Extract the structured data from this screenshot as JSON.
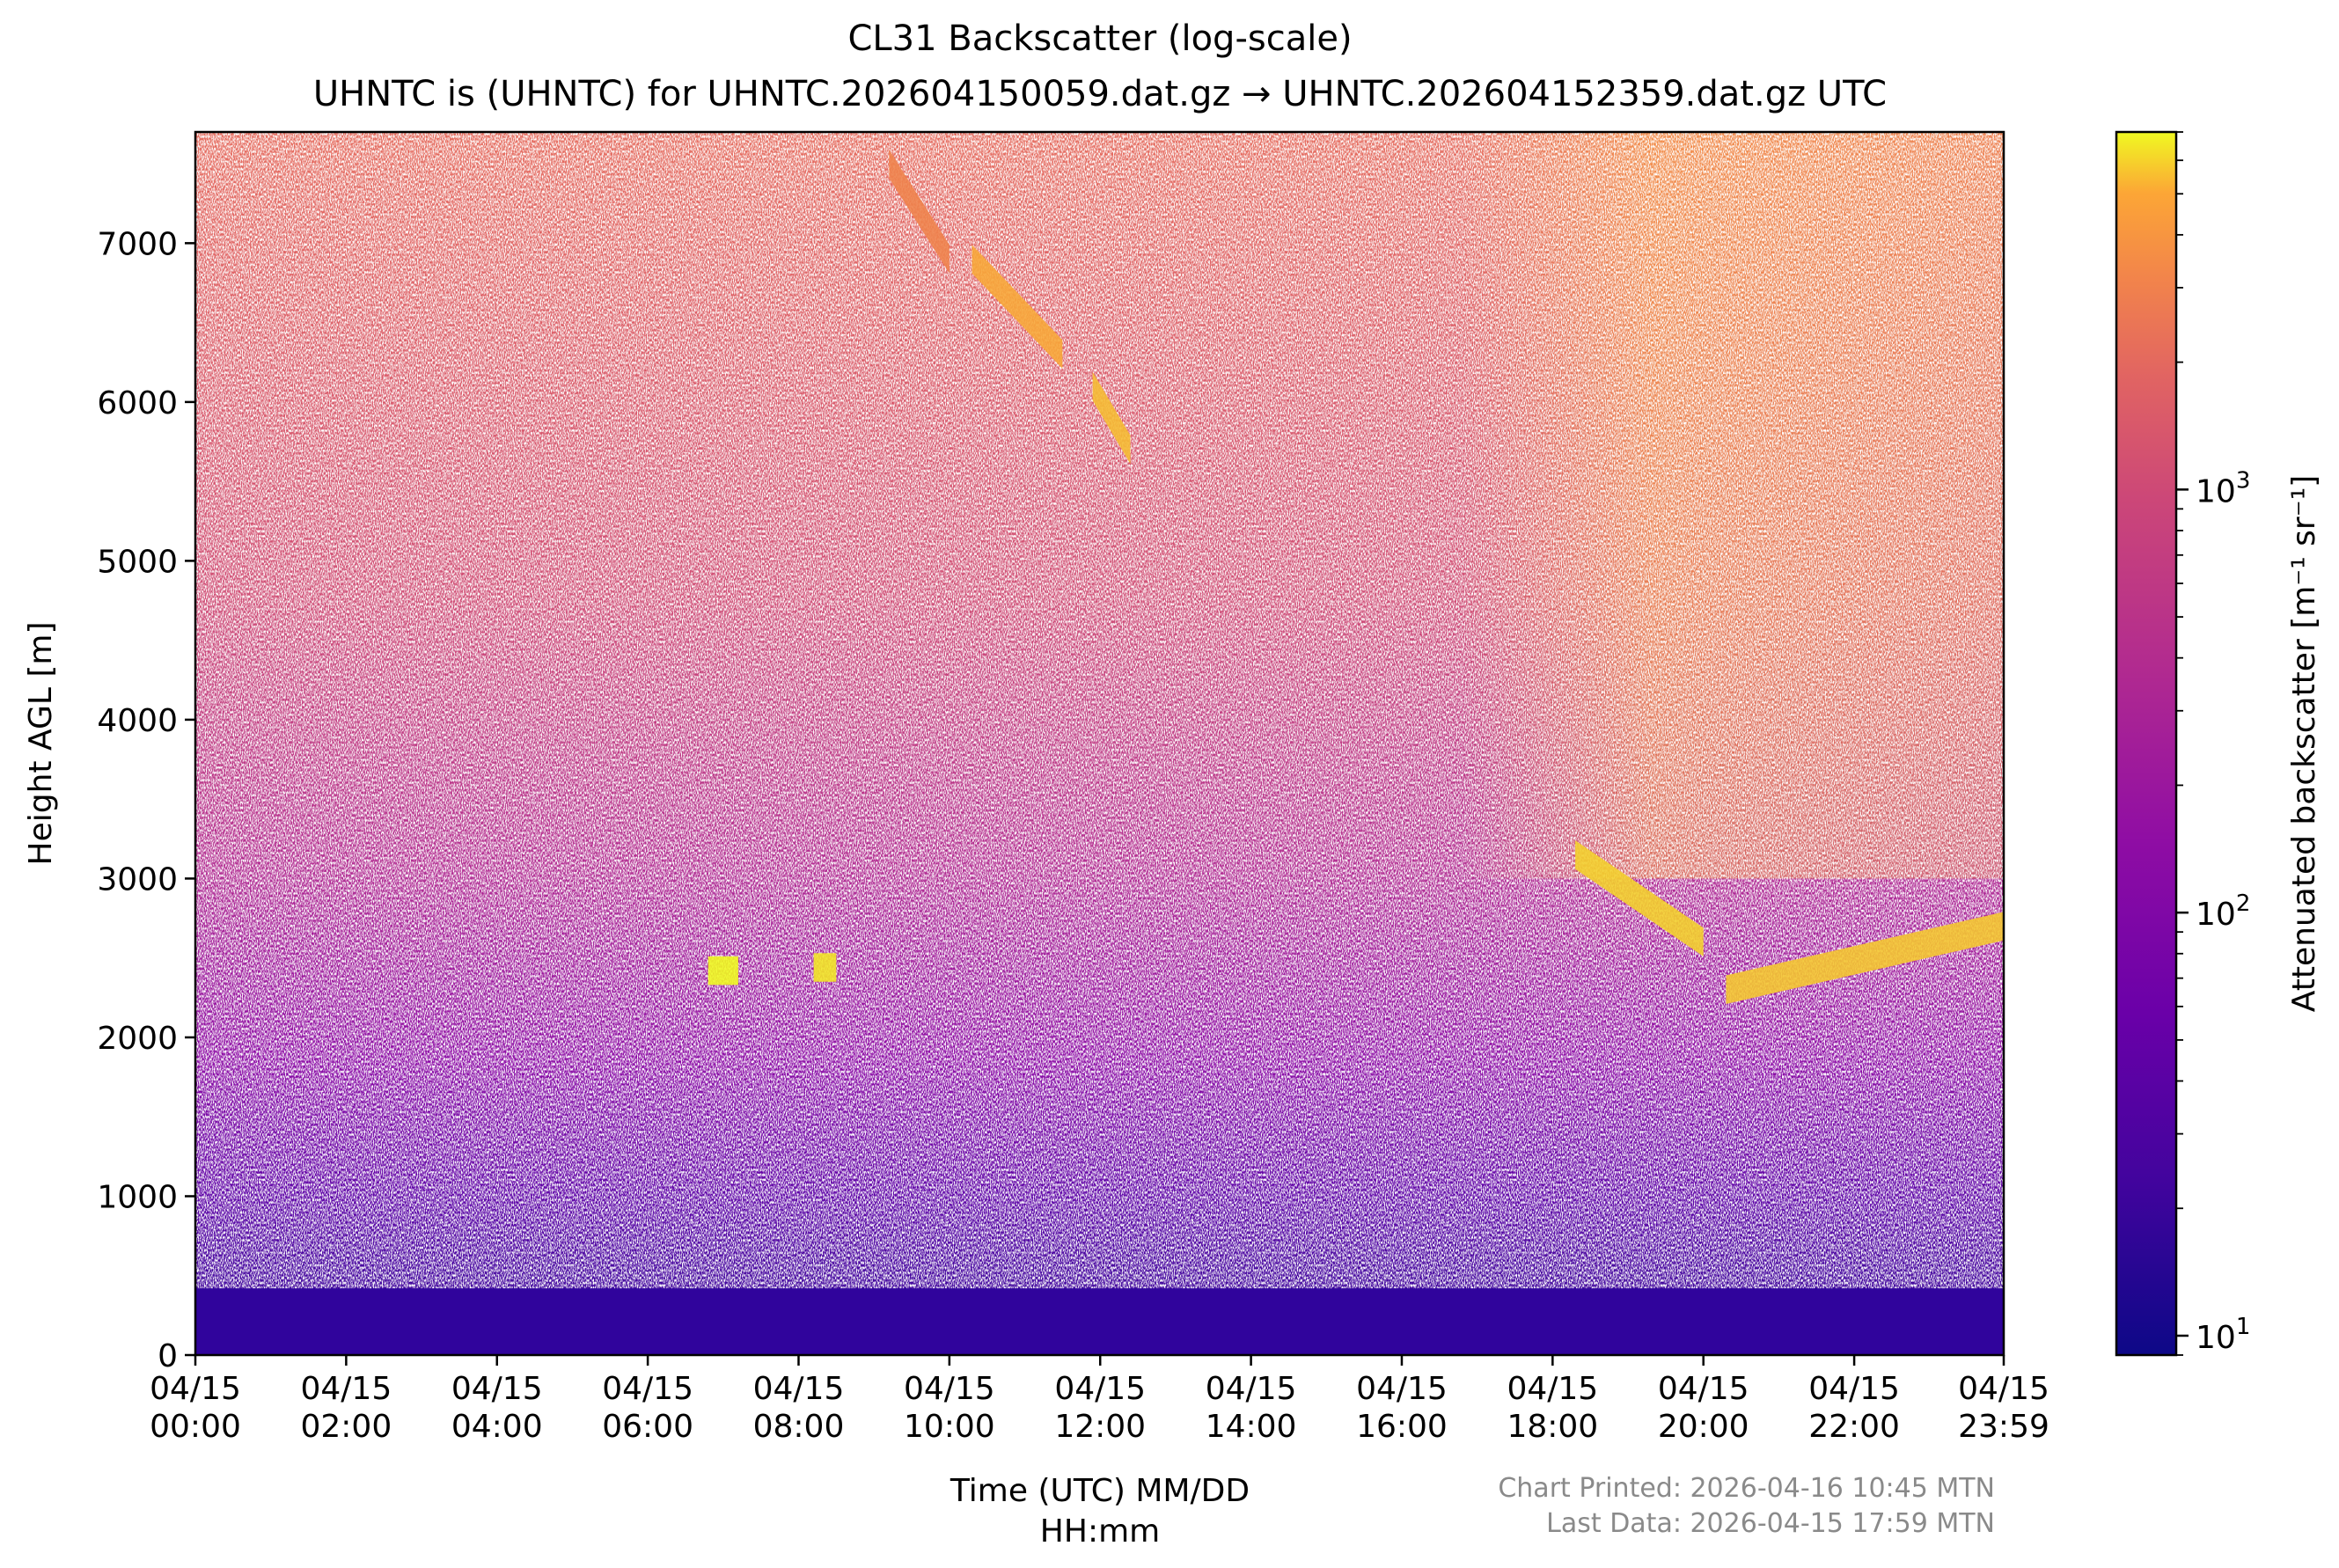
{
  "chart_data": {
    "type": "heatmap",
    "title": "CL31 Backscatter (log-scale)",
    "subtitle": "UHNTC is (UHNTC) for UHNTC.202604150059.dat.gz → UHNTC.202604152359.dat.gz UTC",
    "xlabel_line1": "Time (UTC) MM/DD",
    "xlabel_line2": "HH:mm",
    "ylabel": "Height AGL [m]",
    "colorbar_label": "Attenuated backscatter [m⁻¹ sr⁻¹]",
    "colormap": "plasma",
    "colorbar_scale": "log",
    "colorbar_range": [
      9,
      7000
    ],
    "colorbar_ticks": [
      {
        "value": 10,
        "base": "10",
        "exp": "1"
      },
      {
        "value": 100,
        "base": "10",
        "exp": "2"
      },
      {
        "value": 1000,
        "base": "10",
        "exp": "3"
      }
    ],
    "xlim_hours": [
      0,
      23.983
    ],
    "ylim": [
      0,
      7700
    ],
    "x_ticks": [
      {
        "hours": 0,
        "date": "04/15",
        "time": "00:00"
      },
      {
        "hours": 2,
        "date": "04/15",
        "time": "02:00"
      },
      {
        "hours": 4,
        "date": "04/15",
        "time": "04:00"
      },
      {
        "hours": 6,
        "date": "04/15",
        "time": "06:00"
      },
      {
        "hours": 8,
        "date": "04/15",
        "time": "08:00"
      },
      {
        "hours": 10,
        "date": "04/15",
        "time": "10:00"
      },
      {
        "hours": 12,
        "date": "04/15",
        "time": "12:00"
      },
      {
        "hours": 14,
        "date": "04/15",
        "time": "14:00"
      },
      {
        "hours": 16,
        "date": "04/15",
        "time": "16:00"
      },
      {
        "hours": 18,
        "date": "04/15",
        "time": "18:00"
      },
      {
        "hours": 20,
        "date": "04/15",
        "time": "20:00"
      },
      {
        "hours": 22,
        "date": "04/15",
        "time": "22:00"
      },
      {
        "hours": 23.983,
        "date": "04/15",
        "time": "23:59"
      }
    ],
    "y_ticks": [
      {
        "value": 0,
        "label": "0"
      },
      {
        "value": 1000,
        "label": "1000"
      },
      {
        "value": 2000,
        "label": "2000"
      },
      {
        "value": 3000,
        "label": "3000"
      },
      {
        "value": 4000,
        "label": "4000"
      },
      {
        "value": 5000,
        "label": "5000"
      },
      {
        "value": 6000,
        "label": "6000"
      },
      {
        "value": 7000,
        "label": "7000"
      }
    ],
    "cloud_features": [
      {
        "t_start": 9.2,
        "t_end": 10.0,
        "h_start": 7500,
        "h_end": 6900,
        "level": 900
      },
      {
        "t_start": 10.3,
        "t_end": 11.5,
        "h_start": 6900,
        "h_end": 6300,
        "level": 1800
      },
      {
        "t_start": 11.9,
        "t_end": 12.4,
        "h_start": 6100,
        "h_end": 5700,
        "level": 2500
      },
      {
        "t_start": 6.8,
        "t_end": 7.2,
        "h_start": 2420,
        "h_end": 2420,
        "level": 7000
      },
      {
        "t_start": 8.2,
        "t_end": 8.5,
        "h_start": 2440,
        "h_end": 2440,
        "level": 5000
      },
      {
        "t_start": 20.3,
        "t_end": 23.98,
        "h_start": 2300,
        "h_end": 2700,
        "level": 3000
      },
      {
        "t_start": 18.3,
        "t_end": 20.0,
        "h_start": 3150,
        "h_end": 2600,
        "level": 3500
      }
    ]
  },
  "footer": {
    "printed": "Chart Printed: 2026-04-16 10:45 MTN",
    "last_data": "Last Data: 2026-04-15 17:59 MTN"
  }
}
